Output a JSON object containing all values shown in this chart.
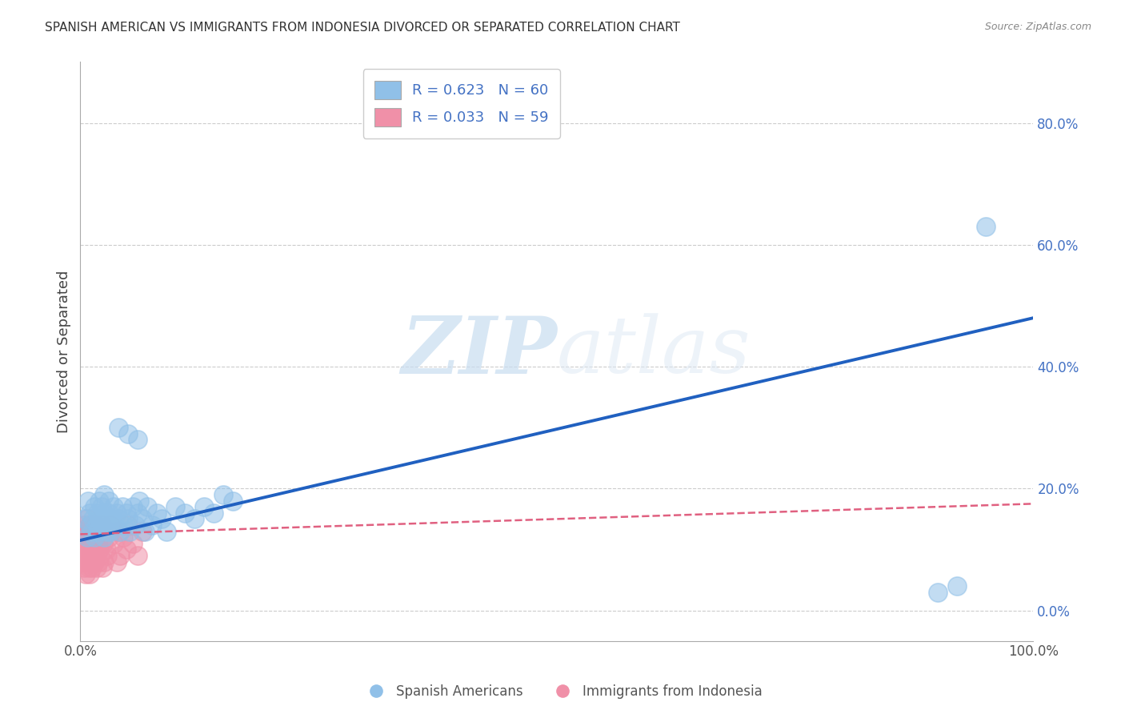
{
  "title": "SPANISH AMERICAN VS IMMIGRANTS FROM INDONESIA DIVORCED OR SEPARATED CORRELATION CHART",
  "source": "Source: ZipAtlas.com",
  "ylabel": "Divorced or Separated",
  "xlim": [
    0,
    1.0
  ],
  "ylim": [
    -0.05,
    0.9
  ],
  "yticks": [
    0.0,
    0.2,
    0.4,
    0.6,
    0.8
  ],
  "ytick_labels": [
    "0.0%",
    "20.0%",
    "40.0%",
    "60.0%",
    "80.0%"
  ],
  "xtick_labels": [
    "0.0%",
    "100.0%"
  ],
  "grid_color": "#cccccc",
  "watermark_zip": "ZIP",
  "watermark_atlas": "atlas",
  "legend_r1": "R = 0.623   N = 60",
  "legend_r2": "R = 0.033   N = 59",
  "blue_color": "#90c0e8",
  "pink_color": "#f090a8",
  "blue_line_color": "#2060c0",
  "pink_line_color": "#e06080",
  "legend_label_1": "Spanish Americans",
  "legend_label_2": "Immigrants from Indonesia",
  "blue_trend_x": [
    0.0,
    1.0
  ],
  "blue_trend_y": [
    0.115,
    0.48
  ],
  "pink_trend_x": [
    0.0,
    1.0
  ],
  "pink_trend_y": [
    0.125,
    0.175
  ],
  "blue_scatter_x": [
    0.005,
    0.007,
    0.008,
    0.01,
    0.01,
    0.012,
    0.013,
    0.015,
    0.015,
    0.017,
    0.018,
    0.018,
    0.02,
    0.02,
    0.022,
    0.022,
    0.025,
    0.025,
    0.025,
    0.027,
    0.028,
    0.03,
    0.03,
    0.03,
    0.032,
    0.033,
    0.035,
    0.036,
    0.038,
    0.04,
    0.042,
    0.044,
    0.045,
    0.048,
    0.05,
    0.052,
    0.055,
    0.058,
    0.06,
    0.062,
    0.065,
    0.068,
    0.07,
    0.075,
    0.08,
    0.085,
    0.09,
    0.1,
    0.11,
    0.12,
    0.13,
    0.14,
    0.15,
    0.16,
    0.04,
    0.05,
    0.06,
    0.9,
    0.92,
    0.95
  ],
  "blue_scatter_y": [
    0.15,
    0.12,
    0.18,
    0.14,
    0.16,
    0.13,
    0.15,
    0.17,
    0.12,
    0.14,
    0.13,
    0.16,
    0.15,
    0.18,
    0.14,
    0.17,
    0.16,
    0.12,
    0.19,
    0.13,
    0.15,
    0.14,
    0.16,
    0.18,
    0.13,
    0.15,
    0.17,
    0.14,
    0.16,
    0.15,
    0.13,
    0.17,
    0.14,
    0.16,
    0.15,
    0.13,
    0.17,
    0.14,
    0.16,
    0.18,
    0.15,
    0.13,
    0.17,
    0.14,
    0.16,
    0.15,
    0.13,
    0.17,
    0.16,
    0.15,
    0.17,
    0.16,
    0.19,
    0.18,
    0.3,
    0.29,
    0.28,
    0.03,
    0.04,
    0.63
  ],
  "pink_scatter_x": [
    0.001,
    0.002,
    0.002,
    0.003,
    0.003,
    0.004,
    0.004,
    0.005,
    0.005,
    0.005,
    0.006,
    0.006,
    0.007,
    0.007,
    0.008,
    0.008,
    0.008,
    0.009,
    0.009,
    0.01,
    0.01,
    0.01,
    0.011,
    0.011,
    0.012,
    0.012,
    0.013,
    0.013,
    0.014,
    0.015,
    0.015,
    0.016,
    0.016,
    0.017,
    0.018,
    0.018,
    0.019,
    0.02,
    0.02,
    0.021,
    0.022,
    0.023,
    0.024,
    0.025,
    0.026,
    0.027,
    0.028,
    0.03,
    0.032,
    0.035,
    0.038,
    0.04,
    0.042,
    0.045,
    0.048,
    0.05,
    0.055,
    0.06,
    0.065
  ],
  "pink_scatter_y": [
    0.08,
    0.12,
    0.1,
    0.09,
    0.13,
    0.07,
    0.11,
    0.08,
    0.14,
    0.1,
    0.06,
    0.12,
    0.09,
    0.15,
    0.08,
    0.11,
    0.13,
    0.07,
    0.1,
    0.06,
    0.14,
    0.09,
    0.12,
    0.08,
    0.11,
    0.07,
    0.1,
    0.13,
    0.09,
    0.12,
    0.08,
    0.14,
    0.1,
    0.07,
    0.11,
    0.13,
    0.08,
    0.1,
    0.12,
    0.09,
    0.14,
    0.07,
    0.11,
    0.08,
    0.13,
    0.1,
    0.09,
    0.12,
    0.14,
    0.11,
    0.08,
    0.13,
    0.09,
    0.12,
    0.1,
    0.14,
    0.11,
    0.09,
    0.13
  ],
  "background_color": "#ffffff",
  "title_fontsize": 11,
  "axis_label_fontsize": 13,
  "tick_fontsize": 12
}
